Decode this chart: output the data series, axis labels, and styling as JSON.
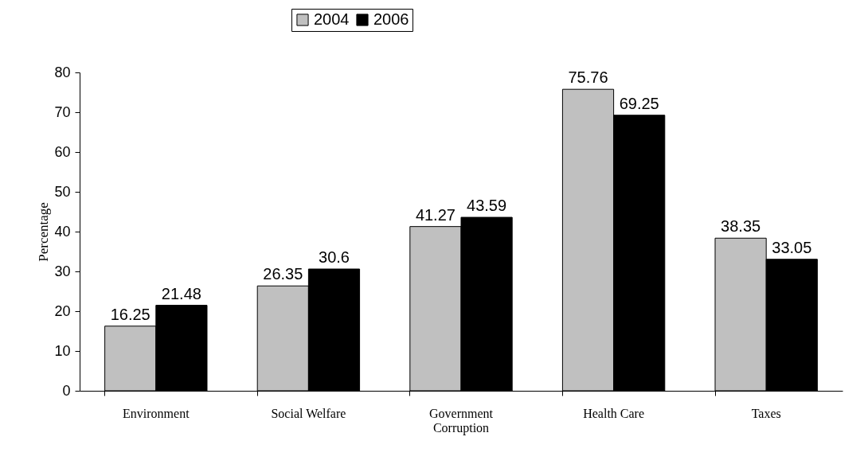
{
  "chart_data": {
    "type": "bar",
    "ylabel": "Percentage",
    "categories": [
      "Environment",
      "Social Welfare",
      "Government Corruption",
      "Health Care",
      "Taxes"
    ],
    "series": [
      {
        "name": "2004",
        "color": "#c0c0c0",
        "values": [
          16.25,
          26.35,
          41.27,
          75.76,
          38.35
        ]
      },
      {
        "name": "2006",
        "color": "#000000",
        "values": [
          21.48,
          30.6,
          43.59,
          69.25,
          33.05
        ]
      }
    ],
    "ylim": [
      0,
      80
    ],
    "yticks": [
      0,
      10,
      20,
      30,
      40,
      50,
      60,
      70,
      80
    ],
    "data_labels": true,
    "legend": "top",
    "grid": false
  }
}
